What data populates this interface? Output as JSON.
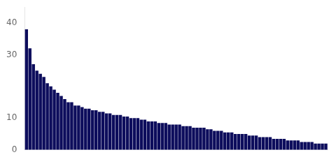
{
  "chart_data": {
    "type": "bar",
    "values": [
      38,
      32,
      27,
      25,
      24,
      23,
      21,
      20,
      19,
      18,
      17,
      16,
      15,
      15,
      14,
      14,
      13.5,
      13,
      13,
      12.5,
      12.5,
      12,
      12,
      11.5,
      11.5,
      11,
      11,
      11,
      10.5,
      10.5,
      10,
      10,
      10,
      9.5,
      9.5,
      9,
      9,
      9,
      8.5,
      8.5,
      8.5,
      8,
      8,
      8,
      8,
      7.5,
      7.5,
      7.5,
      7,
      7,
      7,
      7,
      6.5,
      6.5,
      6,
      6,
      6,
      5.5,
      5.5,
      5.5,
      5,
      5,
      5,
      5,
      4.5,
      4.5,
      4.5,
      4,
      4,
      4,
      4,
      3.5,
      3.5,
      3.5,
      3.5,
      3,
      3,
      3,
      3,
      2.5,
      2.5,
      2.5,
      2.5,
      2,
      2,
      2,
      2
    ],
    "color": "#0d0d5c",
    "ylim": [
      0,
      45
    ],
    "yticks": [
      0,
      10,
      30,
      40
    ],
    "grid": false,
    "tick_labels": "y"
  }
}
